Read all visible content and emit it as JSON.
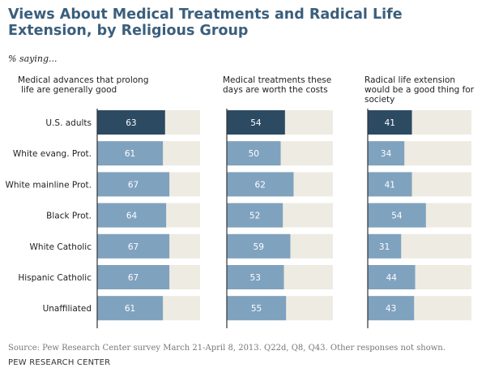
{
  "title": "Views About Medical Treatments and Radical Life Extension, by Religious Group",
  "subtitle": "% saying...",
  "source": "Source: Pew Research Center survey March 21-April 8, 2013. Q22d, Q8, Q43. Other responses not shown.",
  "footer": "PEW RESEARCH CENTER",
  "colors": {
    "highlight_bar": "#2d4a63",
    "bar": "#7fa2bf",
    "background_bar": "#eeebe3",
    "axis": "#333333"
  },
  "chart_data": {
    "type": "bar",
    "orientation": "horizontal",
    "categories": [
      "U.S. adults",
      "White evang. Prot.",
      "White mainline Prot.",
      "Black Prot.",
      "White Catholic",
      "Hispanic Catholic",
      "Unaffiliated"
    ],
    "highlight_category": "U.S. adults",
    "xlim": [
      0,
      100
    ],
    "series": [
      {
        "name": "Medical advances that prolong life are generally good",
        "values": [
          63,
          61,
          67,
          64,
          67,
          67,
          61
        ]
      },
      {
        "name": "Medical treatments these days are worth the costs",
        "values": [
          54,
          50,
          62,
          52,
          59,
          53,
          55
        ]
      },
      {
        "name": "Radical life extension would be a good thing for society",
        "values": [
          41,
          34,
          41,
          54,
          31,
          44,
          43
        ]
      }
    ],
    "panel_titles": [
      [
        "Medical advances that prolong",
        "life are generally good"
      ],
      [
        "Medical treatments these",
        "days are worth the costs"
      ],
      [
        "Radical life extension",
        "would be a good thing for",
        "society"
      ]
    ],
    "grid": false,
    "legend": "none"
  }
}
